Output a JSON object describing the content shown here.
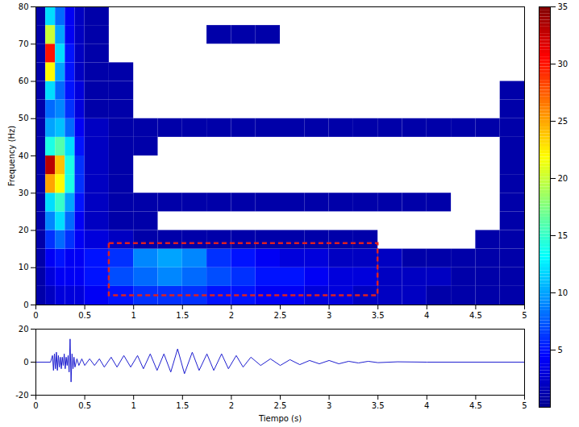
{
  "chart_data": [
    {
      "type": "heatmap",
      "ylabel": "Frequency (Hz)",
      "xlim": [
        0,
        5
      ],
      "xticks": [
        0,
        0.5,
        1,
        1.5,
        2,
        2.5,
        3,
        3.5,
        4,
        4.5,
        5
      ],
      "ylim": [
        0,
        80
      ],
      "yticks": [
        0,
        10,
        20,
        30,
        40,
        50,
        60,
        70,
        80
      ],
      "x_edges": [
        0,
        0.1,
        0.2,
        0.3,
        0.4,
        0.5,
        0.75,
        1,
        1.25,
        1.5,
        1.75,
        2,
        2.25,
        2.5,
        2.75,
        3,
        3.25,
        3.5,
        3.75,
        4,
        4.25,
        4.5,
        4.75,
        5
      ],
      "y_edges": [
        0,
        5,
        10,
        15,
        20,
        25,
        30,
        35,
        40,
        45,
        50,
        55,
        60,
        65,
        70,
        75,
        80
      ],
      "values": [
        [
          1,
          2,
          3,
          3,
          3,
          4,
          5,
          6,
          6,
          6,
          5,
          5,
          4,
          4,
          3,
          3,
          2,
          2,
          2,
          1,
          1,
          1,
          1
        ],
        [
          1,
          3,
          4,
          4,
          4,
          5,
          7,
          8,
          9,
          8,
          7,
          6,
          5,
          5,
          4,
          3,
          3,
          2,
          2,
          2,
          1,
          1,
          1
        ],
        [
          1,
          4,
          5,
          4,
          4,
          5,
          6,
          9,
          10,
          9,
          6,
          5,
          4,
          3,
          3,
          2,
          2,
          2,
          1,
          1,
          1,
          1,
          1
        ],
        [
          1,
          6,
          8,
          6,
          4,
          3,
          2,
          1,
          1,
          1,
          1,
          1,
          1,
          1,
          1,
          1,
          1,
          null,
          null,
          null,
          null,
          1,
          1
        ],
        [
          1,
          9,
          12,
          8,
          4,
          2,
          1,
          1,
          null,
          null,
          null,
          null,
          null,
          null,
          null,
          null,
          null,
          null,
          null,
          null,
          null,
          null,
          1
        ],
        [
          1,
          12,
          15,
          10,
          5,
          2,
          1,
          1,
          1,
          1,
          1,
          1,
          1,
          1,
          1,
          1,
          1,
          1,
          1,
          1,
          null,
          null,
          1
        ],
        [
          1,
          25,
          22,
          14,
          6,
          2,
          1,
          null,
          null,
          null,
          null,
          null,
          null,
          null,
          null,
          null,
          null,
          null,
          null,
          null,
          null,
          null,
          1
        ],
        [
          1,
          33,
          24,
          14,
          6,
          2,
          1,
          null,
          null,
          null,
          null,
          null,
          null,
          null,
          null,
          null,
          null,
          null,
          null,
          null,
          null,
          null,
          1
        ],
        [
          1,
          14,
          16,
          12,
          5,
          2,
          1,
          1,
          null,
          null,
          null,
          null,
          null,
          null,
          null,
          null,
          null,
          null,
          null,
          null,
          null,
          null,
          1
        ],
        [
          1,
          10,
          11,
          8,
          4,
          2,
          1,
          1,
          1,
          1,
          1,
          1,
          1,
          1,
          1,
          1,
          1,
          1,
          1,
          1,
          1,
          1,
          1
        ],
        [
          1,
          8,
          9,
          6,
          3,
          1,
          1,
          null,
          null,
          null,
          null,
          null,
          null,
          null,
          null,
          null,
          null,
          null,
          null,
          null,
          null,
          null,
          1
        ],
        [
          1,
          12,
          8,
          5,
          3,
          1,
          1,
          null,
          null,
          null,
          null,
          null,
          null,
          null,
          null,
          null,
          null,
          null,
          null,
          null,
          null,
          null,
          1
        ],
        [
          1,
          22,
          10,
          5,
          2,
          1,
          1,
          null,
          null,
          null,
          null,
          null,
          null,
          null,
          null,
          null,
          null,
          null,
          null,
          null,
          null,
          null,
          null
        ],
        [
          1,
          30,
          12,
          5,
          2,
          1,
          null,
          null,
          null,
          null,
          null,
          null,
          null,
          null,
          null,
          null,
          null,
          null,
          null,
          null,
          null,
          null,
          null
        ],
        [
          1,
          20,
          10,
          4,
          2,
          1,
          null,
          null,
          null,
          null,
          1,
          1,
          1,
          null,
          null,
          null,
          null,
          null,
          null,
          null,
          null,
          null,
          null
        ],
        [
          1,
          12,
          8,
          4,
          2,
          1,
          null,
          null,
          null,
          null,
          null,
          null,
          null,
          null,
          null,
          null,
          null,
          null,
          null,
          null,
          null,
          null,
          null
        ]
      ],
      "colorbar": {
        "lim": [
          0,
          35
        ],
        "ticks": [
          5,
          10,
          15,
          20,
          25,
          30,
          35
        ]
      },
      "box": {
        "x": [
          0.75,
          3.5
        ],
        "y": [
          2.5,
          16.5
        ],
        "color": "#e02020",
        "line_style": "dashed"
      }
    },
    {
      "type": "line",
      "xlabel": "Tiempo (s)",
      "xlim": [
        0,
        5
      ],
      "xticks": [
        0,
        0.5,
        1,
        1.5,
        2,
        2.5,
        3,
        3.5,
        4,
        4.5,
        5
      ],
      "ylim": [
        -20,
        20
      ],
      "yticks": [
        -20,
        0,
        20
      ],
      "color": "#1f1fd0",
      "x": [
        0,
        0.15,
        0.17,
        0.18,
        0.19,
        0.2,
        0.21,
        0.22,
        0.23,
        0.24,
        0.25,
        0.26,
        0.27,
        0.28,
        0.29,
        0.3,
        0.31,
        0.32,
        0.33,
        0.34,
        0.35,
        0.36,
        0.37,
        0.38,
        0.39,
        0.4,
        0.42,
        0.44,
        0.47,
        0.5,
        0.55,
        0.6,
        0.65,
        0.7,
        0.77,
        0.83,
        0.9,
        0.97,
        1.04,
        1.1,
        1.17,
        1.24,
        1.31,
        1.38,
        1.45,
        1.52,
        1.6,
        1.67,
        1.75,
        1.82,
        1.9,
        1.97,
        2.05,
        2.12,
        2.2,
        2.3,
        2.4,
        2.5,
        2.6,
        2.7,
        2.8,
        2.9,
        3.0,
        3.1,
        3.2,
        3.3,
        3.4,
        3.5,
        3.7,
        4.0,
        5
      ],
      "values": [
        0,
        0,
        4,
        -5,
        5,
        -4,
        6,
        -5,
        4,
        -3,
        3,
        -4,
        3,
        -2,
        5,
        -4,
        3,
        -2,
        4,
        -6,
        14,
        -12,
        5,
        -4,
        3,
        -3,
        2,
        -2,
        2,
        -2,
        2,
        -2,
        2,
        -3,
        3,
        -3,
        4,
        -3,
        4,
        -4,
        5,
        -5,
        5,
        -6,
        8,
        -7,
        6,
        -5,
        5,
        -5,
        5,
        -4,
        4,
        -3,
        3,
        -2,
        2,
        -2,
        1.5,
        -1.5,
        1,
        -1,
        1,
        -1,
        0.5,
        -0.5,
        0.5,
        -0.3,
        0.2,
        0,
        0
      ]
    }
  ]
}
